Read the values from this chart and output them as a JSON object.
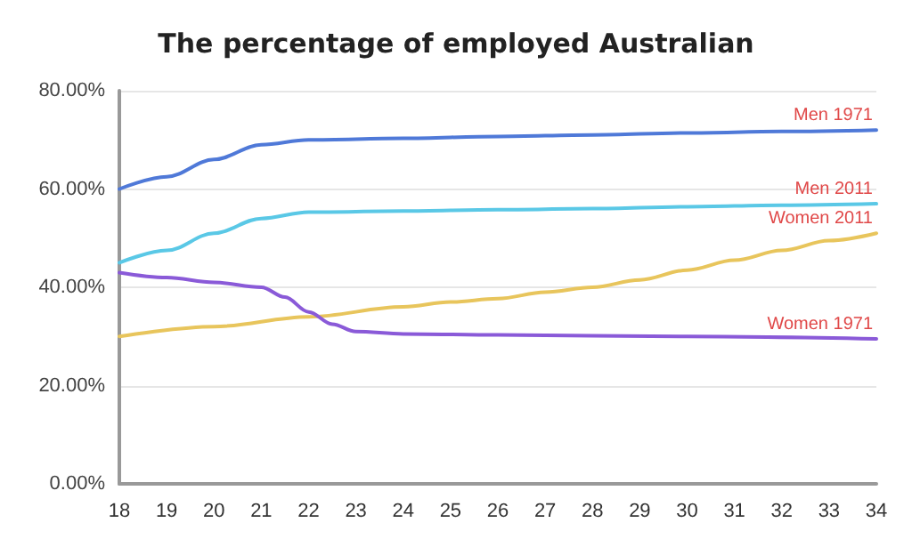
{
  "chart_data": {
    "type": "line",
    "title": "The percentage of employed Australian",
    "xlim": [
      18,
      34
    ],
    "xticks": [
      18,
      19,
      20,
      21,
      22,
      23,
      24,
      25,
      26,
      27,
      28,
      29,
      30,
      31,
      32,
      33,
      34
    ],
    "ylim": [
      0,
      80
    ],
    "yticks": [
      {
        "value": 0,
        "label": "0.00%"
      },
      {
        "value": 20,
        "label": "20.00%"
      },
      {
        "value": 40,
        "label": "40.00%"
      },
      {
        "value": 60,
        "label": "60.00%"
      },
      {
        "value": 80,
        "label": "80.00%"
      }
    ],
    "grid": "y",
    "legend": false,
    "marker": "none",
    "line_style": "solid",
    "series": [
      {
        "name": "Men 1971",
        "color": "#4f79d8",
        "x": [
          18,
          19,
          20,
          21,
          22,
          24,
          26,
          28,
          30,
          32,
          34
        ],
        "values": [
          60,
          62.5,
          66,
          69,
          70,
          70.3,
          70.7,
          71,
          71.4,
          71.7,
          72
        ]
      },
      {
        "name": "Men 2011",
        "color": "#5ac8e6",
        "x": [
          18,
          19,
          20,
          21,
          22,
          24,
          26,
          28,
          30,
          32,
          34
        ],
        "values": [
          45,
          47.5,
          51,
          54,
          55.3,
          55.5,
          55.8,
          56,
          56.4,
          56.7,
          57
        ]
      },
      {
        "name": "Women 2011",
        "color": "#e8c55c",
        "x": [
          18,
          20,
          22,
          24,
          25,
          26,
          27,
          28,
          29,
          30,
          31,
          32,
          33,
          34
        ],
        "values": [
          30,
          32,
          34,
          36,
          37,
          37.7,
          39,
          40,
          41.5,
          43.5,
          45.5,
          47.5,
          49.5,
          51
        ]
      },
      {
        "name": "Women 1971",
        "color": "#8a5ad8",
        "x": [
          18,
          19,
          20,
          21,
          21.5,
          22,
          22.5,
          23,
          24,
          26,
          30,
          34
        ],
        "values": [
          43,
          42,
          41,
          40,
          38,
          35,
          32.5,
          31,
          30.5,
          30.3,
          30,
          29.5
        ]
      }
    ]
  }
}
